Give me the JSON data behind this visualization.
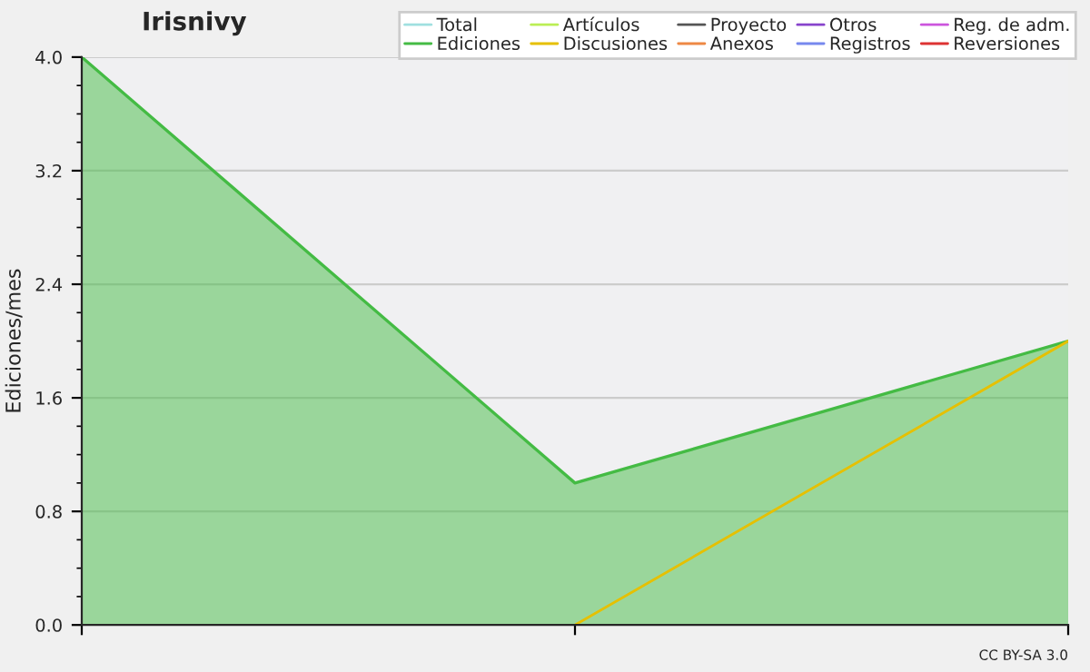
{
  "chart_data": {
    "type": "line",
    "title": "Irisnivy",
    "ylabel": "Ediciones/mes",
    "categories": [
      null,
      null,
      null
    ],
    "series": [
      {
        "name": "Total",
        "color": "#a0e0e0",
        "values": [
          null,
          null,
          null
        ]
      },
      {
        "name": "Ediciones",
        "color": "#44bb44",
        "type": "area",
        "values": [
          4.0,
          1.0,
          2.0
        ]
      },
      {
        "name": "Artículos",
        "color": "#bbee55",
        "values": [
          null,
          null,
          null
        ]
      },
      {
        "name": "Discusiones",
        "color": "#e6c000",
        "values": [
          null,
          0.0,
          2.0
        ]
      },
      {
        "name": "Proyecto",
        "color": "#555555",
        "values": [
          null,
          null,
          null
        ]
      },
      {
        "name": "Anexos",
        "color": "#ee8844",
        "values": [
          null,
          null,
          null
        ]
      },
      {
        "name": "Otros",
        "color": "#8844cc",
        "values": [
          null,
          null,
          null
        ]
      },
      {
        "name": "Registros",
        "color": "#7788ee",
        "values": [
          null,
          null,
          null
        ]
      },
      {
        "name": "Reg. de adm.",
        "color": "#cc55dd",
        "values": [
          null,
          null,
          null
        ]
      },
      {
        "name": "Reversiones",
        "color": "#dd3333",
        "values": [
          null,
          null,
          null
        ]
      }
    ],
    "ylim": [
      0,
      4
    ],
    "yticks": [
      {
        "value": 0,
        "label": "0.0"
      },
      {
        "value": 0.8,
        "label": "0.8"
      },
      {
        "value": 1.6,
        "label": "1.6"
      },
      {
        "value": 2.4,
        "label": "2.4"
      },
      {
        "value": 3.2,
        "label": "3.2"
      },
      {
        "value": 4,
        "label": "4.0"
      }
    ],
    "grid": "y",
    "legend": "top right",
    "tick_labels": "y",
    "annotations": [
      "CC BY-SA 3.0"
    ]
  }
}
